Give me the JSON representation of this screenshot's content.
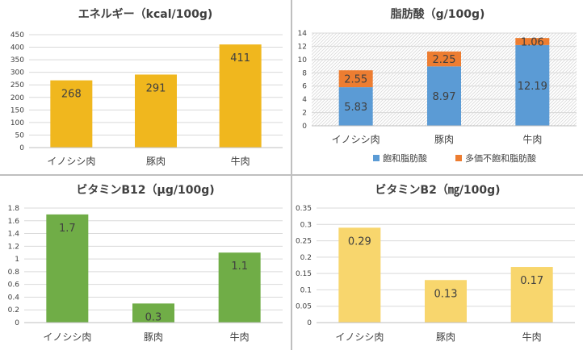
{
  "chart_data": [
    {
      "type": "bar",
      "title": "エネルギー（kcal/100g)",
      "categories": [
        "イノシシ肉",
        "豚肉",
        "牛肉"
      ],
      "values": [
        268,
        291,
        411
      ],
      "data_labels": [
        "268",
        "291",
        "411"
      ],
      "ylim": [
        0,
        450
      ],
      "yticks": [
        "0",
        "50",
        "100",
        "150",
        "200",
        "250",
        "300",
        "350",
        "400",
        "450"
      ],
      "grid": true,
      "color": "#F0B71E"
    },
    {
      "type": "bar",
      "stacked": true,
      "title": "脂肪酸（g/100g)",
      "categories": [
        "イノシシ肉",
        "豚肉",
        "牛肉"
      ],
      "series": [
        {
          "name": "飽和脂肪酸",
          "values": [
            5.83,
            8.97,
            12.19
          ],
          "labels": [
            "5.83",
            "8.97",
            "12.19"
          ],
          "color": "#5B9BD5"
        },
        {
          "name": "多価不飽和脂肪酸",
          "values": [
            2.55,
            2.25,
            1.06
          ],
          "labels": [
            "2.55",
            "2.25",
            "1.06"
          ],
          "color": "#ED7D31"
        }
      ],
      "ylim": [
        0,
        14
      ],
      "yticks": [
        "0",
        "2",
        "4",
        "6",
        "8",
        "10",
        "12",
        "14"
      ],
      "grid": true,
      "legend": "bottom"
    },
    {
      "type": "bar",
      "title": "ビタミンB12（μg/100g)",
      "categories": [
        "イノシシ肉",
        "豚肉",
        "牛肉"
      ],
      "values": [
        1.7,
        0.3,
        1.1
      ],
      "data_labels": [
        "1.7",
        "0.3",
        "1.1"
      ],
      "ylim": [
        0,
        1.8
      ],
      "yticks": [
        "0",
        "0.2",
        "0.4",
        "0.6",
        "0.8",
        "1",
        "1.2",
        "1.4",
        "1.6",
        "1.8"
      ],
      "grid": true,
      "color": "#70AD47"
    },
    {
      "type": "bar",
      "title": "ビタミンB2（㎎/100g)",
      "categories": [
        "イノシシ肉",
        "豚肉",
        "牛肉"
      ],
      "values": [
        0.29,
        0.13,
        0.17
      ],
      "data_labels": [
        "0.29",
        "0.13",
        "0.17"
      ],
      "ylim": [
        0,
        0.35
      ],
      "yticks": [
        "0",
        "0.05",
        "0.1",
        "0.15",
        "0.2",
        "0.25",
        "0.3",
        "0.35"
      ],
      "grid": true,
      "color": "#F8D66D"
    }
  ]
}
